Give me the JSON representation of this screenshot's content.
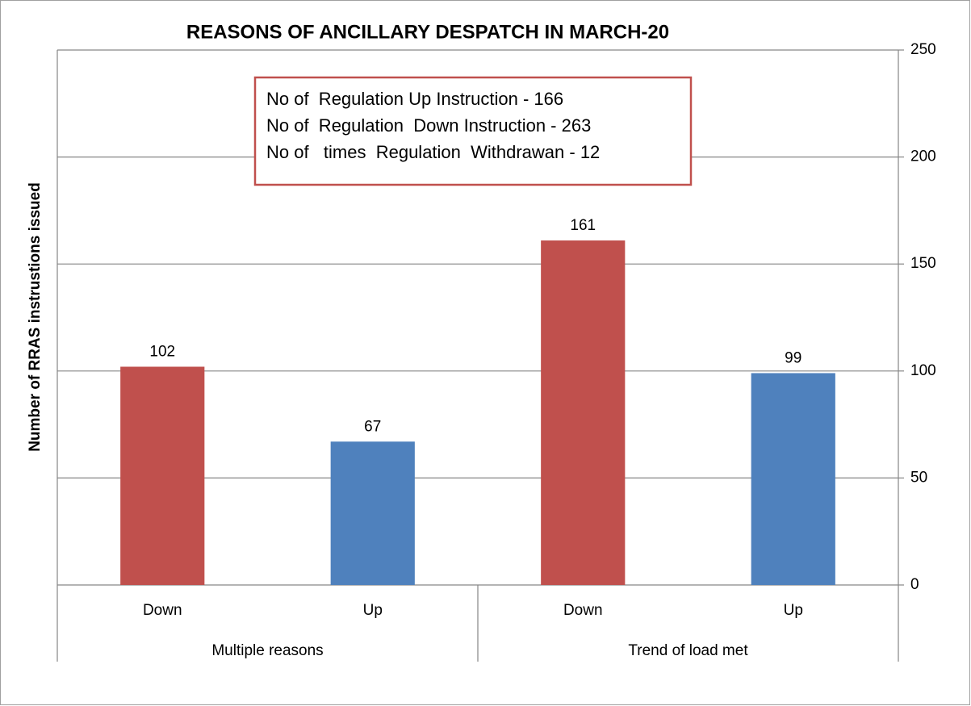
{
  "chart_data": {
    "type": "bar",
    "title": "REASONS OF ANCILLARY DESPATCH IN  MARCH-20",
    "y_axis_label": "Number of RRAS instrustions issued",
    "categories": [
      "Down",
      "Up",
      "Down",
      "Up"
    ],
    "groups": [
      "Multiple reasons",
      "Trend of load met"
    ],
    "values": [
      102,
      67,
      161,
      99
    ],
    "colors": [
      "#c0504d",
      "#4f81bd",
      "#c0504d",
      "#4f81bd"
    ],
    "annotations": [
      "No of  Regulation Up Instruction - 166",
      "No of  Regulation  Down Instruction - 263",
      "No of   times  Regulation  Withdrawan - 12"
    ],
    "ylim": [
      0,
      250
    ],
    "yticks": [
      0,
      50,
      100,
      150,
      200,
      250
    ],
    "y_axis_side": "right",
    "grid": true
  }
}
